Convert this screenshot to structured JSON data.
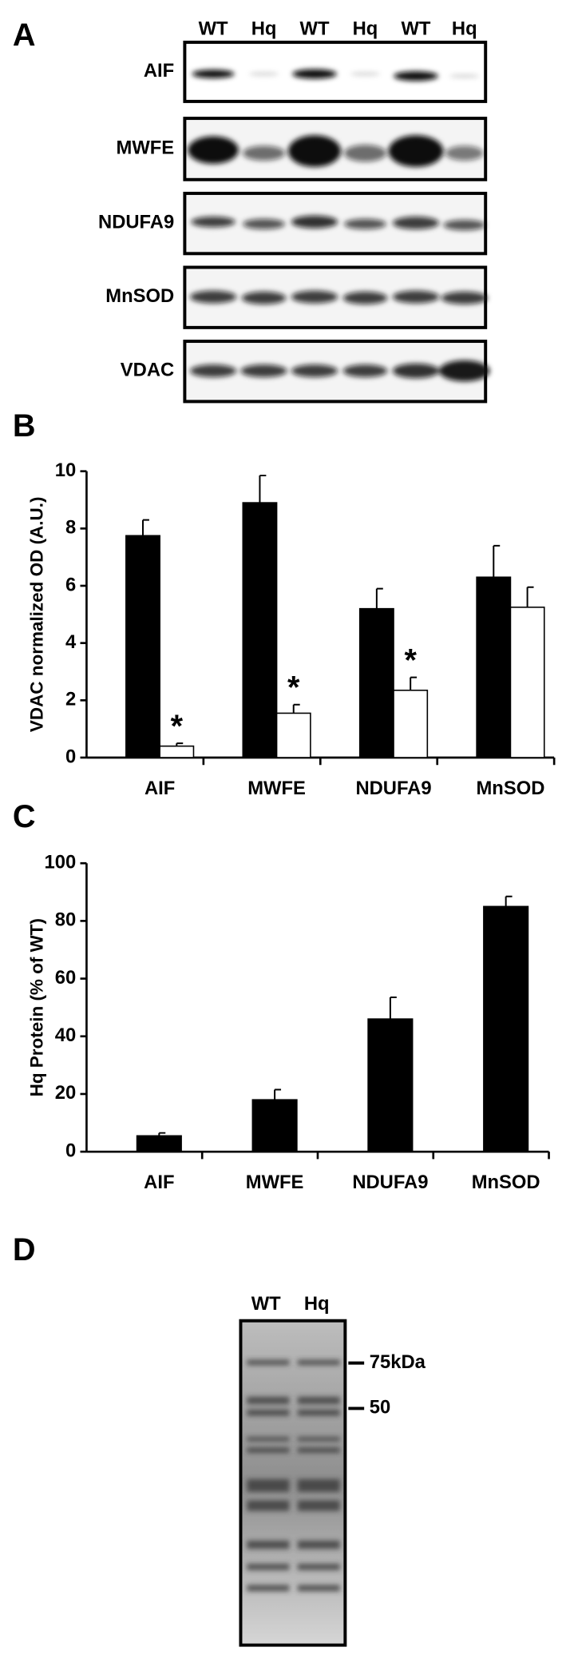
{
  "panel_labels": [
    "A",
    "B",
    "C",
    "D"
  ],
  "blot_a": {
    "lanes": [
      "WT",
      "Hq",
      "WT",
      "Hq",
      "WT",
      "Hq"
    ],
    "rows": [
      "AIF",
      "MWFE",
      "NDUFA9",
      "MnSOD",
      "VDAC"
    ]
  },
  "chart_data": [
    {
      "type": "bar",
      "ylabel": "VDAC normalized OD (A.U.)",
      "categories": [
        "AIF",
        "MWFE",
        "NDUFA9",
        "MnSOD"
      ],
      "series": [
        {
          "color": "#000000",
          "values": [
            7.75,
            8.9,
            5.2,
            6.3
          ],
          "errors": [
            0.55,
            0.95,
            0.7,
            1.1
          ]
        },
        {
          "color": "#ffffff",
          "values": [
            0.4,
            1.55,
            2.35,
            5.25
          ],
          "errors": [
            0.1,
            0.3,
            0.45,
            0.7
          ]
        }
      ],
      "significance": [
        "*",
        "*",
        "*",
        null
      ],
      "ylim": [
        0,
        10
      ],
      "yticks": [
        0,
        2,
        4,
        6,
        8,
        10
      ]
    },
    {
      "type": "bar",
      "ylabel": "Hq Protein (% of WT)",
      "categories": [
        "AIF",
        "MWFE",
        "NDUFA9",
        "MnSOD"
      ],
      "series": [
        {
          "color": "#000000",
          "values": [
            5.5,
            18,
            46,
            85
          ],
          "errors": [
            1,
            3.5,
            7.5,
            3.5
          ]
        }
      ],
      "ylim": [
        0,
        100
      ],
      "yticks": [
        0,
        20,
        40,
        60,
        80,
        100
      ]
    }
  ],
  "gel_d": {
    "lanes": [
      "WT",
      "Hq"
    ],
    "markers": [
      "75kDa",
      "50"
    ]
  }
}
